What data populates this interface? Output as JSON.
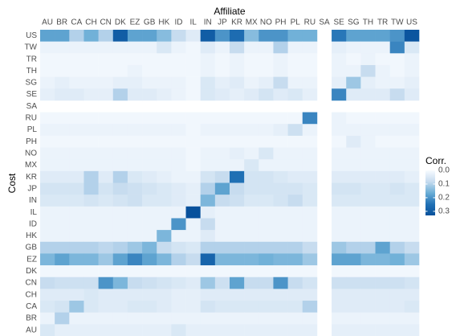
{
  "chart_data": {
    "type": "heatmap",
    "x_label": "Affiliate",
    "y_label": "Cost",
    "legend_title": "Corr.",
    "columns": [
      "AU",
      "BR",
      "CA",
      "CH",
      "CN",
      "DK",
      "EZ",
      "GB",
      "HK",
      "ID",
      "IL",
      "IN",
      "JP",
      "KR",
      "MX",
      "NO",
      "PH",
      "PL",
      "RU",
      "SA",
      "SE",
      "SG",
      "TH",
      "TR",
      "TW",
      "US"
    ],
    "rows": [
      "US",
      "TW",
      "TR",
      "TH",
      "SG",
      "SE",
      "SA",
      "RU",
      "PL",
      "PH",
      "NO",
      "MX",
      "KR",
      "JP",
      "IN",
      "IL",
      "ID",
      "HK",
      "GB",
      "EZ",
      "DK",
      "CN",
      "CH",
      "CA",
      "BR",
      "AU"
    ],
    "values": [
      [
        0.18,
        0.18,
        0.1,
        0.16,
        0.1,
        0.3,
        0.18,
        0.18,
        0.14,
        0.08,
        0.04,
        0.3,
        0.2,
        0.26,
        0.14,
        0.2,
        0.2,
        0.16,
        0.16,
        null,
        0.24,
        0.18,
        0.18,
        0.18,
        0.2,
        0.32
      ],
      [
        0.02,
        0.02,
        0.02,
        0.02,
        0.02,
        0.02,
        0.02,
        0.02,
        0.05,
        0.02,
        0.01,
        0.04,
        0.02,
        0.08,
        0.02,
        0.02,
        0.1,
        0.02,
        0.02,
        null,
        0.03,
        0.02,
        0.02,
        0.02,
        0.22,
        0.05
      ],
      [
        0.01,
        0.01,
        0.01,
        0.01,
        0.01,
        0.01,
        0.01,
        0.01,
        0.01,
        0.01,
        0.01,
        0.02,
        0.01,
        0.02,
        0.01,
        0.01,
        0.02,
        0.01,
        0.01,
        null,
        0.02,
        0.01,
        0.02,
        0.01,
        0.01,
        0.02
      ],
      [
        0.01,
        0.01,
        0.01,
        0.01,
        0.01,
        0.01,
        0.02,
        0.01,
        0.01,
        0.01,
        0.01,
        0.02,
        0.01,
        0.02,
        0.01,
        0.01,
        0.02,
        0.01,
        0.01,
        null,
        0.02,
        0.02,
        0.08,
        0.02,
        0.01,
        0.02
      ],
      [
        0.02,
        0.03,
        0.02,
        0.02,
        0.02,
        0.03,
        0.03,
        0.02,
        0.02,
        0.02,
        0.01,
        0.05,
        0.03,
        0.04,
        0.02,
        0.03,
        0.08,
        0.02,
        0.02,
        null,
        0.03,
        0.12,
        0.03,
        0.02,
        0.02,
        0.03
      ],
      [
        0.03,
        0.04,
        0.04,
        0.03,
        0.03,
        0.1,
        0.04,
        0.04,
        0.03,
        0.02,
        0.01,
        0.05,
        0.04,
        0.03,
        0.04,
        0.06,
        0.04,
        0.05,
        0.03,
        null,
        0.22,
        0.04,
        0.04,
        0.04,
        0.08,
        0.04
      ],
      [
        null,
        null,
        null,
        null,
        null,
        null,
        null,
        null,
        null,
        null,
        null,
        null,
        null,
        null,
        null,
        null,
        null,
        null,
        null,
        null,
        null,
        null,
        null,
        null,
        null,
        null
      ],
      [
        0.01,
        0.01,
        0.01,
        0.01,
        0.01,
        0.01,
        0.01,
        0.01,
        0.01,
        0.01,
        0.01,
        0.01,
        0.01,
        0.01,
        0.01,
        0.01,
        0.01,
        0.01,
        0.22,
        null,
        0.02,
        0.01,
        0.01,
        0.01,
        0.01,
        0.01
      ],
      [
        0.02,
        0.02,
        0.02,
        0.02,
        0.02,
        0.02,
        0.02,
        0.02,
        0.02,
        0.02,
        0.01,
        0.02,
        0.02,
        0.02,
        0.02,
        0.02,
        0.03,
        0.07,
        0.02,
        null,
        0.02,
        0.02,
        0.02,
        0.02,
        0.02,
        0.02
      ],
      [
        0.01,
        0.01,
        0.01,
        0.01,
        0.01,
        0.01,
        0.01,
        0.01,
        0.01,
        0.01,
        0.01,
        0.01,
        0.01,
        0.01,
        0.01,
        0.01,
        0.01,
        0.01,
        0.01,
        null,
        0.01,
        0.04,
        0.02,
        0.01,
        0.01,
        0.01
      ],
      [
        0.02,
        0.02,
        0.02,
        0.02,
        0.02,
        0.02,
        0.02,
        0.02,
        0.02,
        0.02,
        0.01,
        0.02,
        0.02,
        0.03,
        0.02,
        0.05,
        0.02,
        0.02,
        0.02,
        null,
        0.02,
        0.02,
        0.02,
        0.02,
        0.02,
        0.02
      ],
      [
        0.02,
        0.02,
        0.02,
        0.02,
        0.02,
        0.02,
        0.02,
        0.02,
        0.02,
        0.02,
        0.01,
        0.02,
        0.02,
        0.02,
        0.05,
        0.02,
        0.02,
        0.02,
        0.02,
        null,
        0.02,
        0.02,
        0.02,
        0.02,
        0.02,
        0.02
      ],
      [
        0.04,
        0.04,
        0.04,
        0.1,
        0.04,
        0.1,
        0.05,
        0.04,
        0.03,
        0.02,
        0.02,
        0.06,
        0.08,
        0.25,
        0.06,
        0.06,
        0.05,
        0.04,
        0.04,
        null,
        0.04,
        0.04,
        0.04,
        0.04,
        0.04,
        0.03
      ],
      [
        0.06,
        0.06,
        0.06,
        0.1,
        0.06,
        0.08,
        0.07,
        0.06,
        0.05,
        0.04,
        0.03,
        0.1,
        0.18,
        0.08,
        0.06,
        0.06,
        0.06,
        0.06,
        0.05,
        null,
        0.06,
        0.06,
        0.05,
        0.05,
        0.06,
        0.05
      ],
      [
        0.05,
        0.05,
        0.05,
        0.06,
        0.05,
        0.06,
        0.07,
        0.05,
        0.05,
        0.04,
        0.03,
        0.15,
        0.08,
        0.07,
        0.05,
        0.05,
        0.06,
        0.08,
        0.05,
        null,
        0.05,
        0.05,
        0.05,
        0.05,
        0.05,
        0.05
      ],
      [
        0.02,
        0.02,
        0.02,
        0.02,
        0.02,
        0.02,
        0.02,
        0.02,
        0.02,
        0.02,
        0.33,
        0.03,
        0.02,
        0.02,
        0.02,
        0.02,
        0.02,
        0.02,
        0.02,
        null,
        0.02,
        0.02,
        0.02,
        0.02,
        0.02,
        0.02
      ],
      [
        0.02,
        0.02,
        0.02,
        0.02,
        0.02,
        0.02,
        0.02,
        0.02,
        0.02,
        0.2,
        0.02,
        0.08,
        0.02,
        0.02,
        0.02,
        0.02,
        0.02,
        0.02,
        0.02,
        null,
        0.02,
        0.02,
        0.02,
        0.02,
        0.02,
        0.02
      ],
      [
        0.02,
        0.02,
        0.02,
        0.02,
        0.02,
        0.02,
        0.02,
        0.02,
        0.15,
        0.02,
        0.02,
        0.04,
        0.02,
        0.02,
        0.02,
        0.02,
        0.02,
        0.02,
        0.02,
        null,
        0.02,
        0.02,
        0.02,
        0.02,
        0.02,
        0.02
      ],
      [
        0.1,
        0.1,
        0.1,
        0.1,
        0.09,
        0.1,
        0.12,
        0.15,
        0.08,
        0.06,
        0.05,
        0.1,
        0.1,
        0.1,
        0.1,
        0.1,
        0.1,
        0.1,
        0.08,
        null,
        0.12,
        0.1,
        0.1,
        0.18,
        0.1,
        0.08
      ],
      [
        0.15,
        0.18,
        0.15,
        0.15,
        0.12,
        0.18,
        0.22,
        0.18,
        0.15,
        0.1,
        0.08,
        0.28,
        0.15,
        0.15,
        0.15,
        0.16,
        0.15,
        0.15,
        0.12,
        null,
        0.18,
        0.18,
        0.15,
        0.15,
        0.16,
        0.12
      ],
      [
        0.01,
        0.01,
        0.01,
        0.01,
        0.01,
        0.01,
        0.01,
        0.01,
        0.01,
        0.01,
        0.01,
        0.01,
        0.01,
        0.01,
        0.01,
        0.01,
        0.01,
        0.01,
        0.01,
        null,
        0.01,
        0.01,
        0.01,
        0.01,
        0.01,
        0.01
      ],
      [
        0.08,
        0.07,
        0.07,
        0.07,
        0.2,
        0.15,
        0.08,
        0.07,
        0.06,
        0.05,
        0.04,
        0.12,
        0.07,
        0.18,
        0.08,
        0.08,
        0.2,
        0.08,
        0.06,
        null,
        0.07,
        0.07,
        0.07,
        0.07,
        0.07,
        0.06
      ],
      [
        0.04,
        0.04,
        0.04,
        0.05,
        0.04,
        0.04,
        0.04,
        0.04,
        0.04,
        0.03,
        0.03,
        0.04,
        0.04,
        0.04,
        0.04,
        0.04,
        0.04,
        0.04,
        0.04,
        null,
        0.04,
        0.04,
        0.04,
        0.04,
        0.04,
        0.04
      ],
      [
        0.05,
        0.06,
        0.12,
        0.05,
        0.04,
        0.04,
        0.05,
        0.05,
        0.04,
        0.03,
        0.03,
        0.06,
        0.05,
        0.05,
        0.05,
        0.05,
        0.05,
        0.05,
        0.1,
        null,
        0.04,
        0.04,
        0.04,
        0.04,
        0.04,
        0.05
      ],
      [
        0.02,
        0.1,
        0.02,
        0.02,
        0.02,
        0.02,
        0.02,
        0.02,
        0.02,
        0.02,
        0.02,
        0.02,
        0.02,
        0.02,
        0.02,
        0.02,
        0.02,
        0.02,
        0.02,
        null,
        0.02,
        0.02,
        0.02,
        0.02,
        0.02,
        0.02
      ],
      [
        0.05,
        0.03,
        0.03,
        0.03,
        0.03,
        0.03,
        0.03,
        0.03,
        0.03,
        0.05,
        0.03,
        0.03,
        0.03,
        0.03,
        0.03,
        0.03,
        0.03,
        0.03,
        0.03,
        null,
        0.03,
        0.03,
        0.03,
        0.03,
        0.03,
        0.03
      ]
    ],
    "clim": [
      0,
      0.33
    ],
    "colors": [
      "#f7fbff",
      "#c6dbef",
      "#6baed6",
      "#2171b5",
      "#08519c"
    ],
    "cticks": [
      {
        "value": 0,
        "label": "0.0"
      },
      0.1,
      0.2,
      0.3
    ]
  }
}
